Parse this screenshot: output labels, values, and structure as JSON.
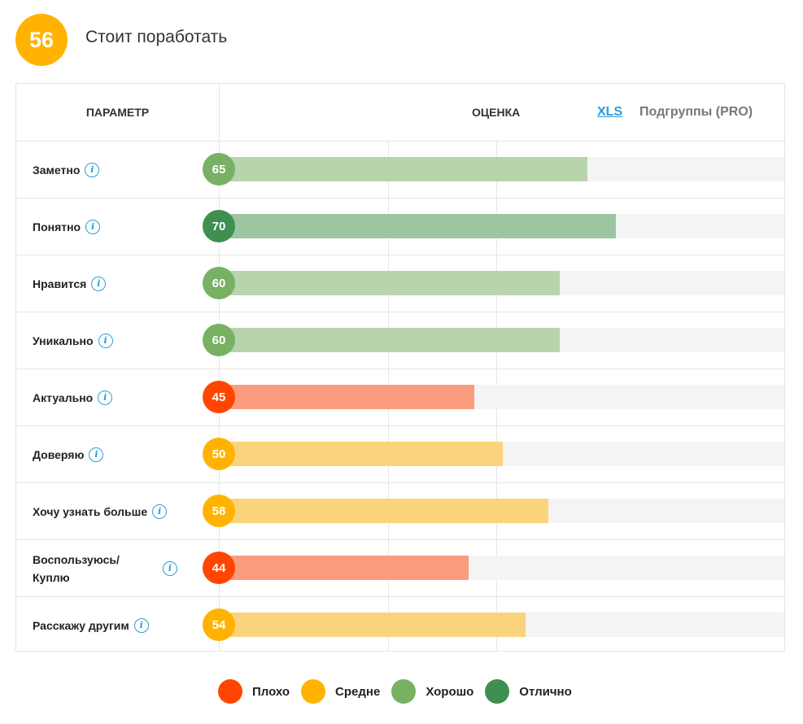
{
  "summary": {
    "score": "56",
    "verdict": "Стоит поработать",
    "color": "#FFB300"
  },
  "table": {
    "param_header": "ПАРАМЕТР",
    "score_header": "ОЦЕНКА",
    "xls_link": "XLS",
    "subgroups_link": "Подгруппы (PRO)"
  },
  "colors": {
    "bad": {
      "dot": "#FF4500",
      "bar": "#FA9D7F"
    },
    "medium": {
      "dot": "#FFB300",
      "bar": "#F9D47C"
    },
    "good": {
      "dot": "#78B064",
      "bar": "#B8D4AC"
    },
    "excellent": {
      "dot": "#3E8F50",
      "bar": "#9CC5A1"
    }
  },
  "chart_data": {
    "type": "bar",
    "orientation": "horizontal",
    "xlim": [
      0,
      100
    ],
    "categories": [
      "Заметно",
      "Понятно",
      "Нравится",
      "Уникально",
      "Актуально",
      "Доверяю",
      "Хочу узнать больше",
      "Воспользуюсь/ Куплю",
      "Расскажу другим"
    ],
    "values": [
      65,
      70,
      60,
      60,
      45,
      50,
      58,
      44,
      54
    ],
    "ratings": [
      "good",
      "excellent",
      "good",
      "good",
      "bad",
      "medium",
      "medium",
      "bad",
      "medium"
    ],
    "value_labels": [
      "65",
      "70",
      "60",
      "60",
      "45",
      "50",
      "58",
      "44",
      "54"
    ],
    "legend": [
      {
        "key": "bad",
        "label": "Плохо"
      },
      {
        "key": "medium",
        "label": "Средне"
      },
      {
        "key": "good",
        "label": "Хорошо"
      },
      {
        "key": "excellent",
        "label": "Отлично"
      }
    ]
  },
  "info_icon": "info-icon",
  "info_glyph": "i"
}
